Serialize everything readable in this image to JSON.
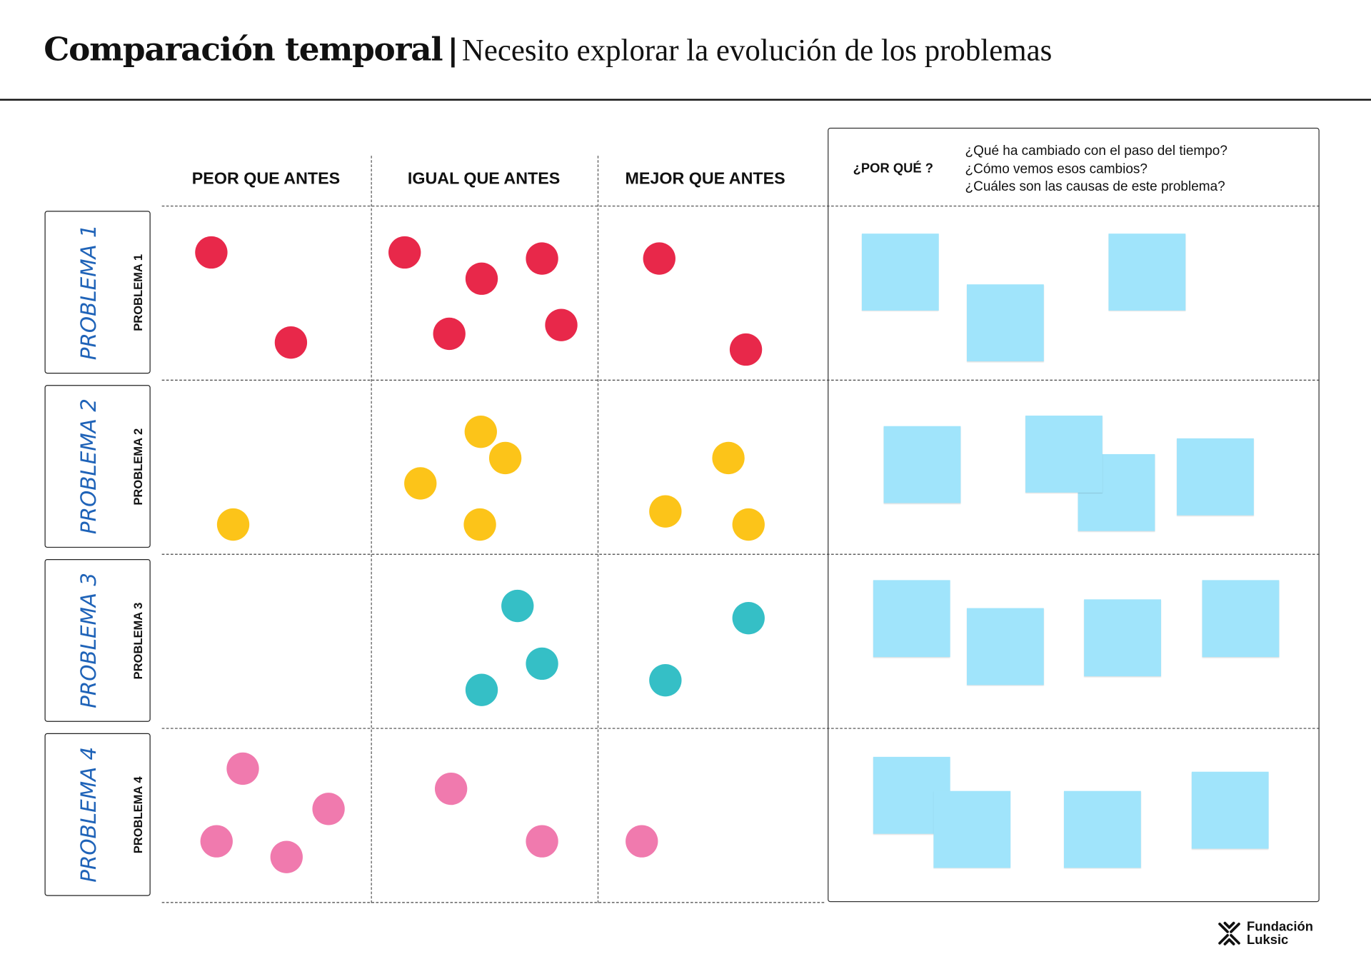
{
  "header": {
    "title": "Comparación temporal",
    "separator": "|",
    "subtitle": "Necesito explorar la evolución de los problemas"
  },
  "columns": [
    "PEOR QUE ANTES",
    "IGUAL QUE ANTES",
    "MEJOR QUE ANTES"
  ],
  "why": {
    "label": "¿POR QUÉ ?",
    "questions": [
      "¿Qué ha cambiado con el paso del tiempo?",
      "¿Cómo vemos esos cambios?",
      "¿Cuáles son las causas de este problema?"
    ]
  },
  "rows": [
    {
      "handwritten": "PROBLEMA 1",
      "label": "PROBLEMA 1",
      "dot_color": "#e8284a",
      "dots_per_column": [
        2,
        5,
        2
      ],
      "sticky_notes": 3
    },
    {
      "handwritten": "PROBLEMA 2",
      "label": "PROBLEMA 2",
      "dot_color": "#fcc419",
      "dots_per_column": [
        1,
        4,
        3
      ],
      "sticky_notes": 4
    },
    {
      "handwritten": "PROBLEMA 3",
      "label": "PROBLEMA 3",
      "dot_color": "#35bfc6",
      "dots_per_column": [
        0,
        3,
        2
      ],
      "sticky_notes": 4
    },
    {
      "handwritten": "PROBLEMA 4",
      "label": "PROBLEMA 4",
      "dot_color": "#f07aae",
      "dots_per_column": [
        4,
        2,
        1
      ],
      "sticky_notes": 4
    }
  ],
  "sticky_color": "#a0e4fb",
  "logo": {
    "line1": "Fundación",
    "line2": "Luksic"
  }
}
